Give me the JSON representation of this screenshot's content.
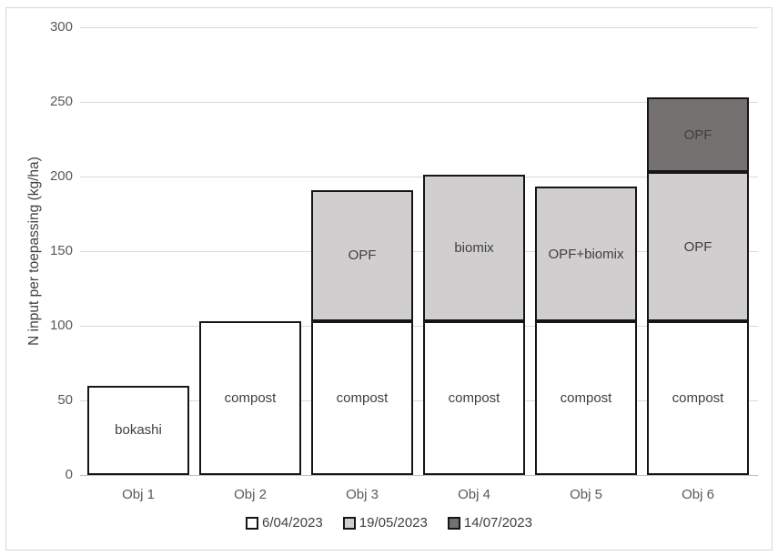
{
  "chart_data": {
    "type": "bar",
    "stacked": true,
    "title": "",
    "xlabel": "",
    "ylabel": "N input per toepassing (kg/ha)",
    "ylim": [
      0,
      300
    ],
    "yticks": [
      300,
      250,
      200,
      150,
      100,
      50,
      0
    ],
    "grid": true,
    "legend_position": "bottom",
    "categories": [
      "Obj 1",
      "Obj 2",
      "Obj 3",
      "Obj 4",
      "Obj 5",
      "Obj 6"
    ],
    "series": [
      {
        "name": "6/04/2023",
        "color": "#ffffff",
        "values": [
          60,
          103,
          103,
          103,
          103,
          103
        ],
        "segment_labels": [
          "bokashi",
          "compost",
          "compost",
          "compost",
          "compost",
          "compost"
        ]
      },
      {
        "name": "19/05/2023",
        "color": "#d0cece",
        "values": [
          0,
          0,
          88,
          98,
          90,
          100
        ],
        "segment_labels": [
          "",
          "",
          "OPF",
          "biomix",
          "OPF+biomix",
          "OPF"
        ]
      },
      {
        "name": "14/07/2023",
        "color": "#767171",
        "values": [
          0,
          0,
          0,
          0,
          0,
          50
        ],
        "segment_labels": [
          "",
          "",
          "",
          "",
          "",
          "OPF"
        ]
      }
    ],
    "totals": [
      60,
      103,
      191,
      201,
      193,
      253
    ]
  },
  "colors": {
    "gridline": "#d9d9d9",
    "axis_line": "#bfbfbf",
    "bar_border": "#161616",
    "tick_text": "#595959",
    "bar_label_text": "#3f3f3f",
    "frame_border": "#d6d6d6"
  }
}
